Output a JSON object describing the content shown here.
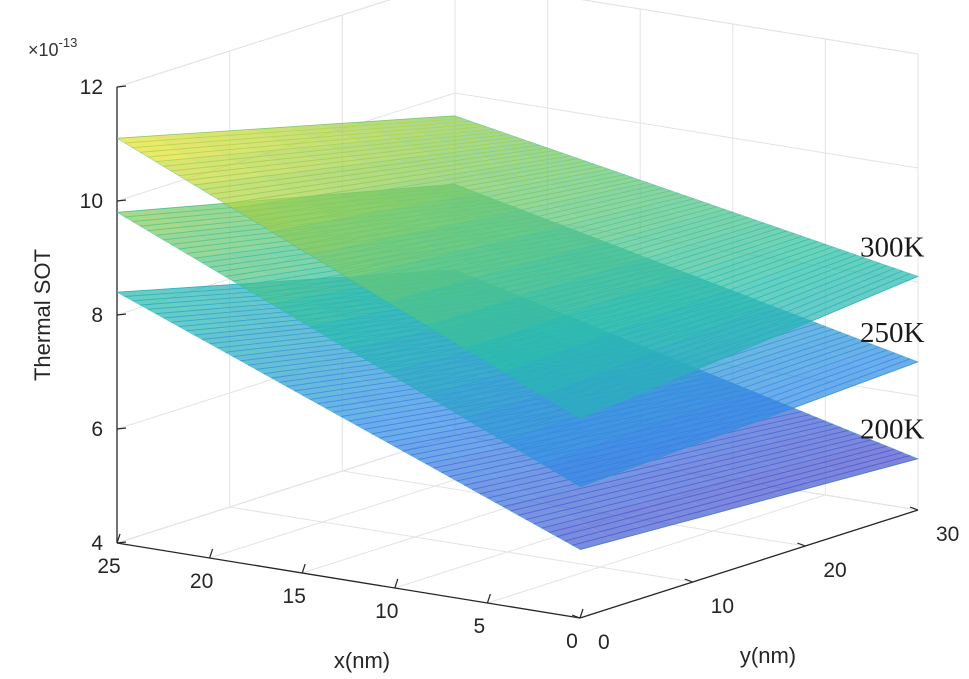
{
  "chart_data": {
    "type": "surface",
    "title": "",
    "xlabel": "x(nm)",
    "ylabel": "y(nm)",
    "zlabel": "Thermal SOT",
    "z_multiplier": "×10",
    "z_multiplier_exponent": "-13",
    "xlim": [
      0,
      25
    ],
    "ylim": [
      0,
      30
    ],
    "zlim": [
      4,
      12
    ],
    "x_ticks": [
      "0",
      "5",
      "10",
      "15",
      "20",
      "25"
    ],
    "y_ticks": [
      "0",
      "10",
      "20",
      "30"
    ],
    "z_ticks": [
      "4",
      "6",
      "8",
      "10",
      "12"
    ],
    "grid": true,
    "colormap": "parula (blue-green-yellow), translucent",
    "surface_corners_order": [
      "x=25,y=0",
      "x=0,y=0",
      "x=0,y=30",
      "x=25,y=30"
    ],
    "series": [
      {
        "name": "200K",
        "corners_z": [
          8.4,
          5.2,
          4.9,
          6.9
        ],
        "color": "#8a7fd6"
      },
      {
        "name": "250K",
        "corners_z": [
          9.8,
          6.3,
          6.6,
          8.4
        ],
        "color": "#7ad3b0"
      },
      {
        "name": "300K",
        "corners_z": [
          11.1,
          7.5,
          8.1,
          9.6
        ],
        "color": "#e7e07a"
      }
    ]
  }
}
